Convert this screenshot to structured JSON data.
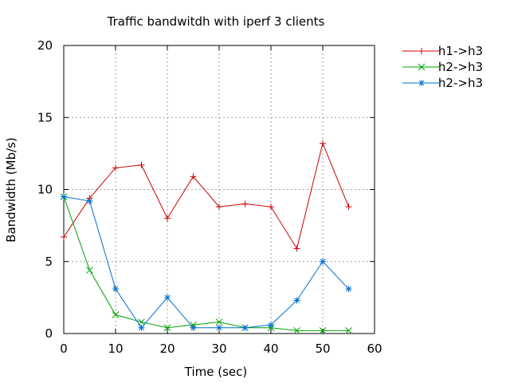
{
  "chart_data": {
    "type": "line",
    "title": "Traffic bandwitdh with iperf 3 clients",
    "xlabel": "Time (sec)",
    "ylabel": "Bandwidth (Mb/s)",
    "xlim": [
      0,
      60
    ],
    "ylim": [
      0,
      20
    ],
    "xticks": [
      0,
      10,
      20,
      30,
      40,
      50,
      60
    ],
    "yticks": [
      0,
      5,
      10,
      15,
      20
    ],
    "grid": true,
    "legend_position": "outside-top-right",
    "x": [
      0,
      5,
      10,
      15,
      20,
      25,
      30,
      35,
      40,
      45,
      50,
      55
    ],
    "series": [
      {
        "name": "h1->h3",
        "color": "#cc0000",
        "marker": "plus",
        "values": [
          6.7,
          9.4,
          11.5,
          11.7,
          8.0,
          10.9,
          8.8,
          9.0,
          8.8,
          5.9,
          13.2,
          8.8
        ]
      },
      {
        "name": "h2->h3",
        "color": "#00a000",
        "marker": "cross",
        "values": [
          9.5,
          4.4,
          1.3,
          0.8,
          0.4,
          0.6,
          0.8,
          0.4,
          0.4,
          0.2,
          0.2,
          0.2
        ]
      },
      {
        "name": "h2->h3",
        "color": "#0070d0",
        "marker": "star",
        "values": [
          9.5,
          9.2,
          3.1,
          0.4,
          2.5,
          0.4,
          0.4,
          0.4,
          0.6,
          2.3,
          5.0,
          3.1
        ]
      }
    ]
  }
}
